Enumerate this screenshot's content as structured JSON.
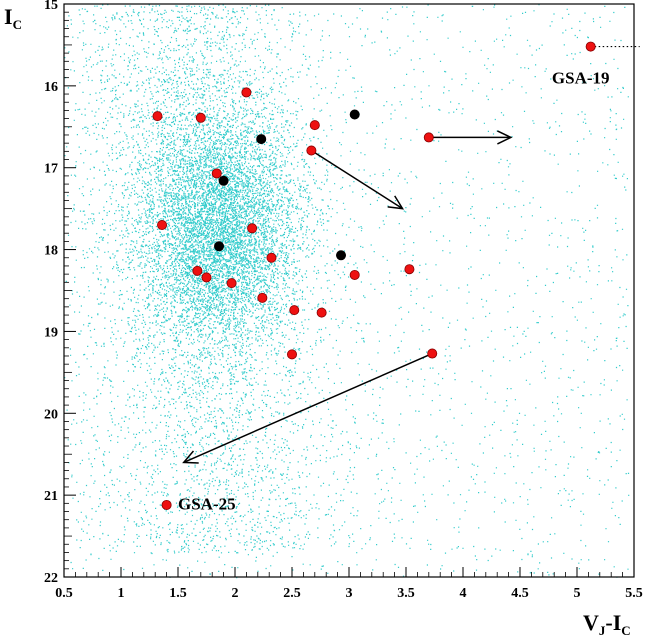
{
  "chart_data": {
    "type": "scatter",
    "xlabel": {
      "main": "V",
      "sub1": "J",
      "dash": "-I",
      "sub2": "C"
    },
    "ylabel": {
      "main": "I",
      "sub": "C"
    },
    "xlim": [
      0.5,
      5.5
    ],
    "ylim": [
      15,
      22
    ],
    "y_inverted": true,
    "x_ticks": [
      0.5,
      1,
      1.5,
      2,
      2.5,
      3,
      3.5,
      4,
      4.5,
      5,
      5.5
    ],
    "x_tick_labels": [
      "0.5",
      "1",
      "1.5",
      "2",
      "2.5",
      "3",
      "3.5",
      "4",
      "4.5",
      "5",
      "5.5"
    ],
    "y_ticks": [
      15,
      16,
      17,
      18,
      19,
      20,
      21,
      22
    ],
    "y_tick_labels": [
      "15",
      "16",
      "17",
      "18",
      "19",
      "20",
      "21",
      "22"
    ],
    "grid": false,
    "background_field": {
      "description_color": "#33cccc",
      "approx_density_peak": [
        1.85,
        17.6
      ]
    },
    "colors": {
      "red": "#ee1111",
      "black": "#000000",
      "field": "#33cccc"
    },
    "series": [
      {
        "color": "red",
        "points": [
          [
            5.12,
            15.52
          ],
          [
            2.1,
            16.08
          ],
          [
            1.32,
            16.37
          ],
          [
            1.7,
            16.39
          ],
          [
            2.7,
            16.48
          ],
          [
            3.7,
            16.63
          ],
          [
            2.67,
            16.79
          ],
          [
            1.84,
            17.07
          ],
          [
            1.36,
            17.7
          ],
          [
            2.15,
            17.74
          ],
          [
            2.32,
            18.1
          ],
          [
            1.67,
            18.26
          ],
          [
            1.75,
            18.34
          ],
          [
            3.05,
            18.31
          ],
          [
            3.53,
            18.24
          ],
          [
            1.97,
            18.41
          ],
          [
            2.24,
            18.59
          ],
          [
            2.52,
            18.74
          ],
          [
            2.76,
            18.77
          ],
          [
            2.5,
            19.28
          ],
          [
            3.73,
            19.27
          ],
          [
            1.4,
            21.12
          ]
        ]
      },
      {
        "color": "black",
        "points": [
          [
            3.05,
            16.35
          ],
          [
            2.23,
            16.65
          ],
          [
            1.9,
            17.16
          ],
          [
            1.86,
            17.96
          ],
          [
            2.93,
            18.07
          ]
        ]
      }
    ],
    "arrows": [
      {
        "from": [
          3.7,
          16.63
        ],
        "to": [
          4.42,
          16.63
        ]
      },
      {
        "from": [
          2.67,
          16.79
        ],
        "to": [
          3.47,
          17.5
        ]
      },
      {
        "from": [
          3.73,
          19.27
        ],
        "to": [
          1.55,
          20.6
        ]
      }
    ],
    "dotted_lines": [
      {
        "from": [
          5.12,
          15.52
        ],
        "to": [
          5.55,
          15.52
        ]
      }
    ],
    "annotations": [
      {
        "text": "GSA-19",
        "at": [
          4.78,
          15.9
        ]
      },
      {
        "text": "GSA-25",
        "at": [
          1.5,
          21.1
        ]
      }
    ]
  }
}
